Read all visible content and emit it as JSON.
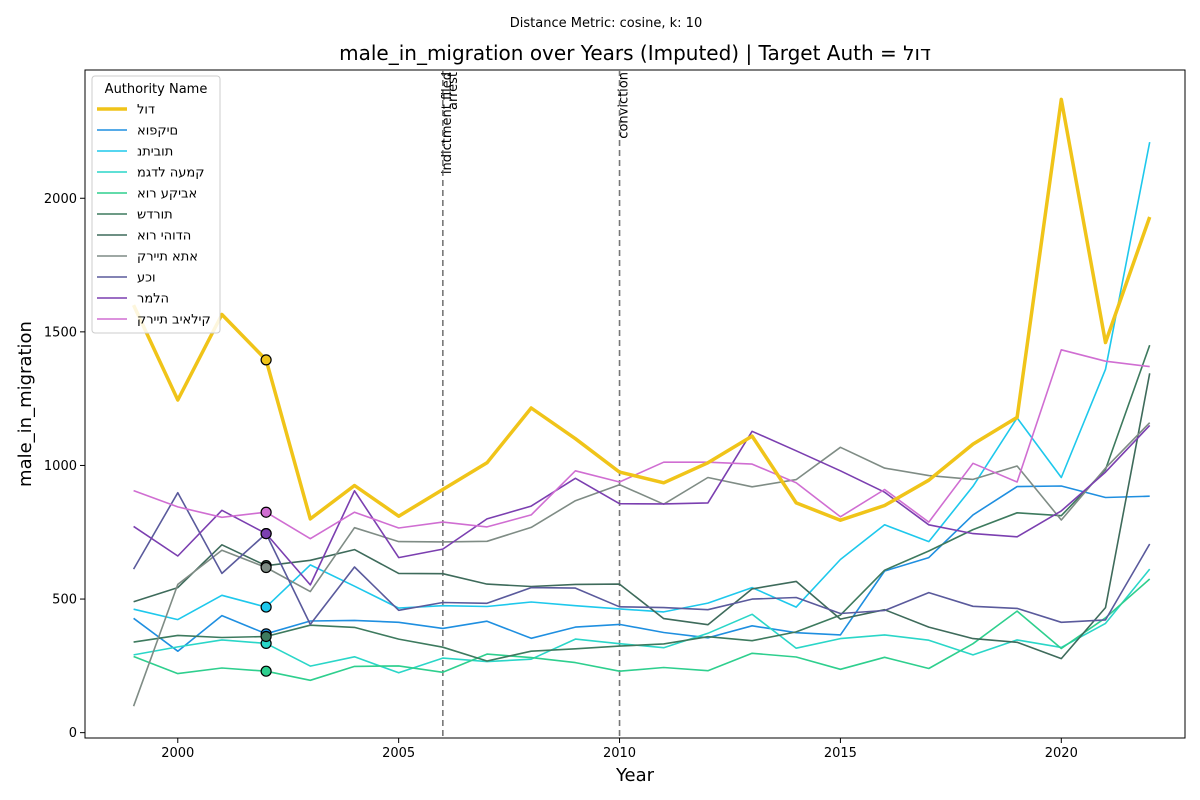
{
  "chart_data": {
    "type": "line",
    "suptitle": "Distance Metric: cosine, k: 10",
    "title": "male_in_migration over Years (Imputed) | Target Auth = דול",
    "xlabel": "Year",
    "ylabel": "male_in_migration",
    "xlim": [
      1997.9,
      2022.8
    ],
    "ylim": [
      -20,
      2480
    ],
    "xticks": [
      2000,
      2005,
      2010,
      2015,
      2020
    ],
    "yticks": [
      0,
      500,
      1000,
      1500,
      2000
    ],
    "grid": false,
    "legend_title": "Authority Name",
    "legend_position": "top-left",
    "highlight_year": 2002,
    "events": [
      {
        "year": 2006,
        "labels": [
          "indictment filed",
          "arrest"
        ]
      },
      {
        "year": 2010,
        "labels": [
          "conviction"
        ]
      }
    ],
    "x": [
      1999,
      2000,
      2001,
      2002,
      2003,
      2004,
      2005,
      2006,
      2007,
      2008,
      2009,
      2010,
      2011,
      2012,
      2013,
      2014,
      2015,
      2016,
      2017,
      2018,
      2019,
      2020,
      2021,
      2022
    ],
    "series": [
      {
        "name": "דול",
        "color": "#f0c419",
        "width": 3.5,
        "values": [
          1600,
          1245,
          1565,
          1395,
          800,
          925,
          810,
          910,
          1010,
          1215,
          1100,
          975,
          935,
          1010,
          1110,
          860,
          795,
          850,
          945,
          1080,
          1180,
          2370,
          1460,
          1930
        ]
      },
      {
        "name": "םיקפוא",
        "color": "#1f8fe0",
        "width": 1.6,
        "values": [
          428,
          305,
          438,
          370,
          418,
          420,
          413,
          390,
          417,
          353,
          395,
          405,
          375,
          355,
          400,
          374,
          366,
          605,
          655,
          815,
          921,
          923,
          880,
          885
        ]
      },
      {
        "name": "תוביתנ",
        "color": "#1ec8ec",
        "width": 1.6,
        "values": [
          462,
          423,
          514,
          470,
          628,
          548,
          466,
          475,
          472,
          489,
          475,
          463,
          452,
          485,
          543,
          470,
          648,
          778,
          715,
          922,
          1178,
          955,
          1360,
          2210
        ]
      },
      {
        "name": "קמעה לדגמ",
        "color": "#2ad6c8",
        "width": 1.6,
        "values": [
          291,
          321,
          347,
          334,
          249,
          284,
          224,
          279,
          266,
          275,
          350,
          333,
          318,
          372,
          443,
          316,
          352,
          366,
          346,
          291,
          347,
          319,
          409,
          612
        ]
      },
      {
        "name": "אביקע רוא",
        "color": "#2ecf8e",
        "width": 1.6,
        "values": [
          285,
          221,
          242,
          230,
          196,
          248,
          250,
          226,
          294,
          281,
          262,
          230,
          244,
          232,
          297,
          283,
          237,
          282,
          240,
          333,
          455,
          315,
          430,
          575
        ]
      },
      {
        "name": "תורדש",
        "color": "#3d7a5e",
        "width": 1.6,
        "values": [
          339,
          364,
          356,
          360,
          402,
          394,
          350,
          320,
          268,
          305,
          314,
          324,
          332,
          359,
          344,
          377,
          440,
          608,
          680,
          760,
          823,
          812,
          985,
          1450
        ]
      },
      {
        "name": "הדוהי רוא",
        "color": "#3e6b5b",
        "width": 1.6,
        "values": [
          490,
          543,
          703,
          625,
          645,
          685,
          596,
          595,
          556,
          547,
          555,
          556,
          427,
          404,
          538,
          566,
          425,
          460,
          395,
          352,
          338,
          277,
          468,
          1345
        ]
      },
      {
        "name": "אתא תיירק",
        "color": "#7f8c85",
        "width": 1.6,
        "values": [
          99,
          555,
          683,
          618,
          528,
          767,
          715,
          714,
          716,
          768,
          868,
          928,
          855,
          955,
          920,
          947,
          1068,
          990,
          962,
          948,
          998,
          796,
          990,
          1160
        ]
      },
      {
        "name": "וכע",
        "color": "#5a5a9c",
        "width": 1.6,
        "values": [
          612,
          898,
          596,
          745,
          405,
          620,
          458,
          487,
          484,
          543,
          541,
          471,
          468,
          460,
          500,
          506,
          446,
          457,
          524,
          473,
          465,
          413,
          422,
          706
        ]
      },
      {
        "name": "הלמר",
        "color": "#7b3fb0",
        "width": 1.6,
        "values": [
          772,
          661,
          832,
          745,
          553,
          905,
          655,
          687,
          800,
          848,
          952,
          857,
          856,
          860,
          1128,
          1055,
          980,
          900,
          778,
          745,
          733,
          830,
          975,
          1150
        ]
      },
      {
        "name": "קילאיב תיירק",
        "color": "#d06ed2",
        "width": 1.6,
        "values": [
          906,
          845,
          806,
          825,
          726,
          825,
          766,
          788,
          770,
          815,
          980,
          938,
          1012,
          1012,
          1005,
          935,
          808,
          910,
          788,
          1008,
          938,
          1433,
          1390,
          1370
        ]
      }
    ]
  }
}
